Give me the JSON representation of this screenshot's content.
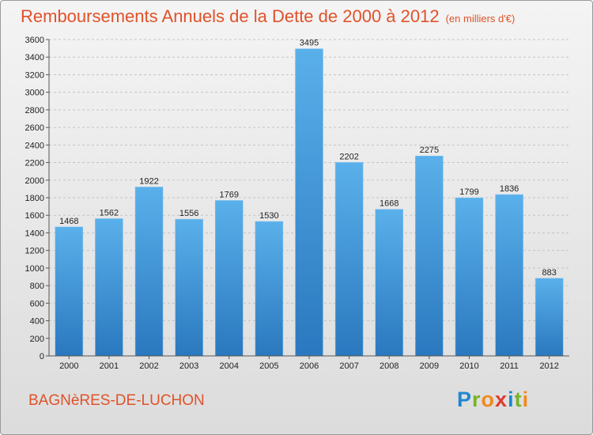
{
  "title": "Remboursements Annuels de la Dette de 2000 à 2012",
  "subtitle": "(en milliers d'€)",
  "commune": "BAGNèRES-DE-LUCHON",
  "logo": {
    "letters": [
      "P",
      "r",
      "o",
      "x",
      "i",
      "t",
      "i"
    ],
    "colors": [
      "#1e88d0",
      "#78b428",
      "#f08a1c",
      "#e03a2e",
      "#1e88d0",
      "#78b428",
      "#f08a1c"
    ]
  },
  "chart_data": {
    "type": "bar",
    "categories": [
      "2000",
      "2001",
      "2002",
      "2003",
      "2004",
      "2005",
      "2006",
      "2007",
      "2008",
      "2009",
      "2010",
      "2011",
      "2012"
    ],
    "values": [
      1468,
      1562,
      1922,
      1556,
      1769,
      1530,
      3495,
      2202,
      1668,
      2275,
      1799,
      1836,
      883
    ],
    "ylim": [
      0,
      3600
    ],
    "ytick_step": 200,
    "grid": true,
    "bar_color": "#4a9fe0"
  }
}
